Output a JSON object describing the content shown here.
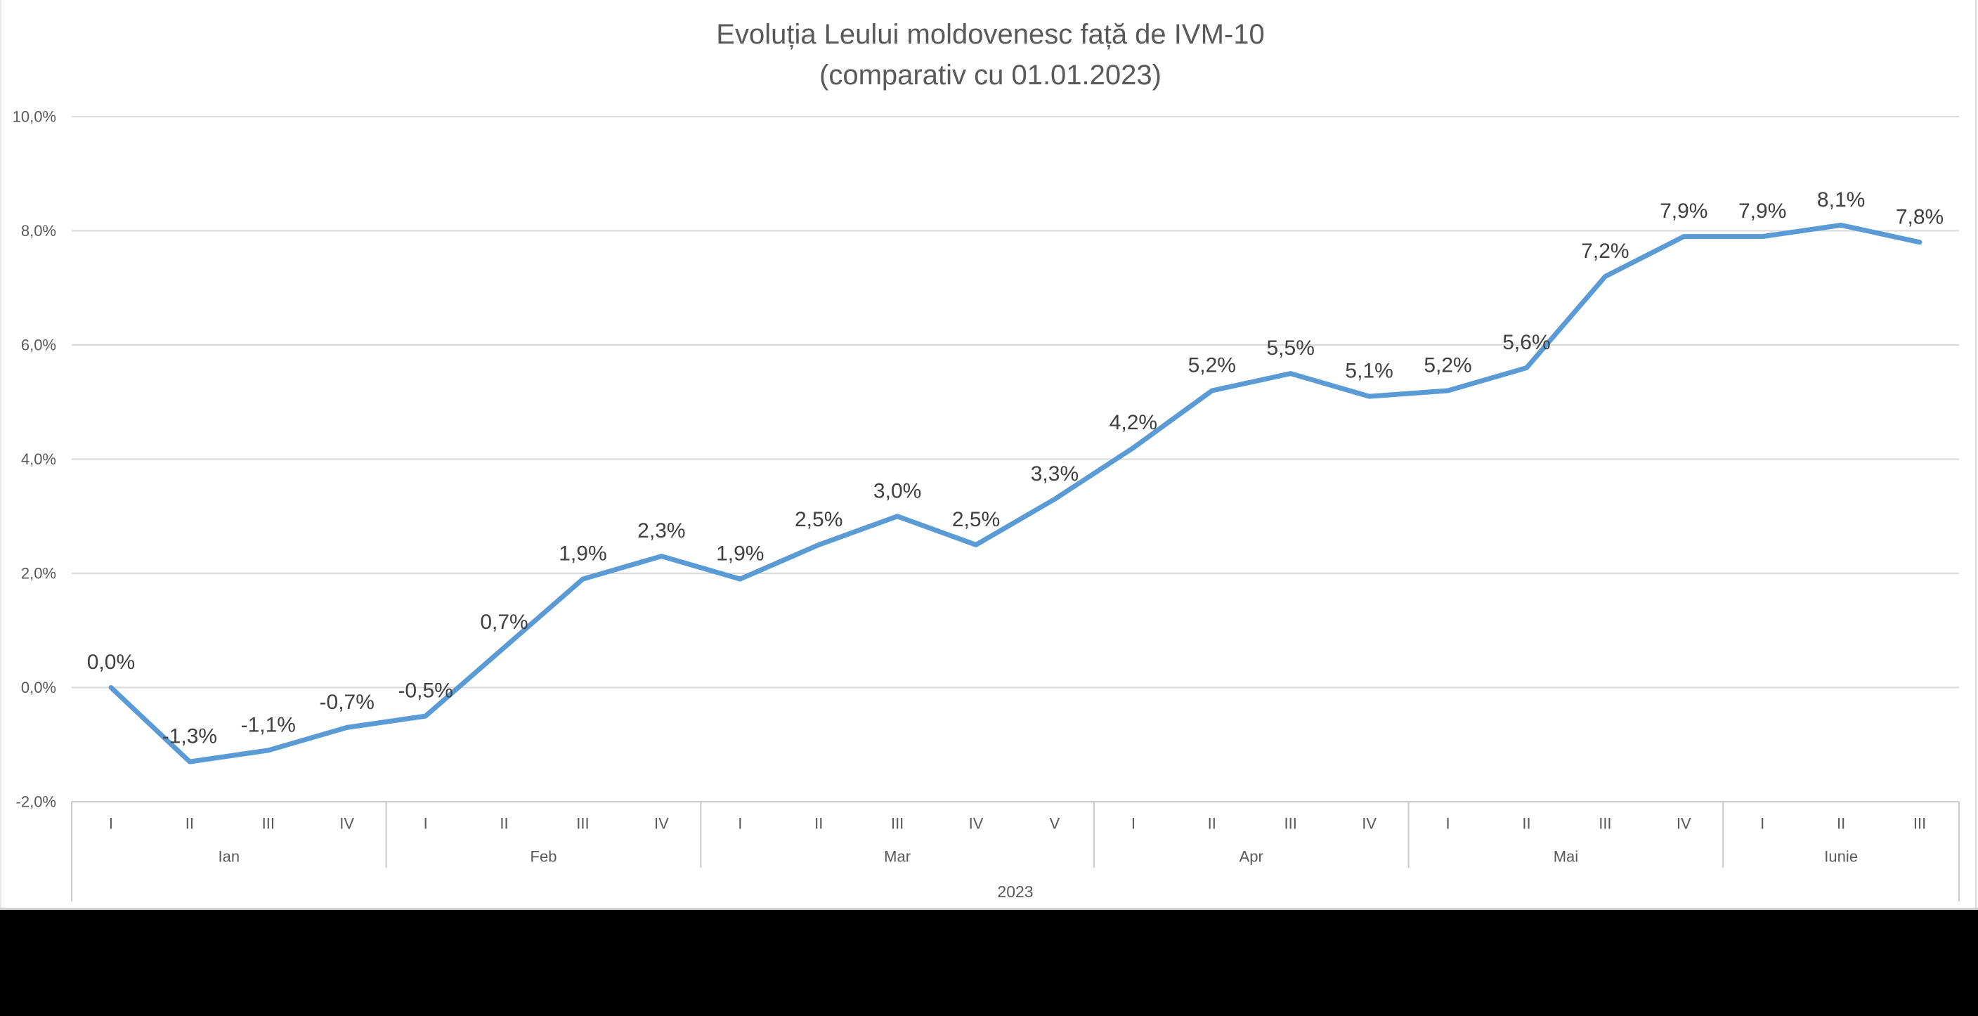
{
  "title": {
    "line1": "Evoluția Leului moldovenesc față de IVM-10",
    "line2": "(comparativ cu 01.01.2023)"
  },
  "chart_data": {
    "type": "line",
    "title": "Evoluția Leului moldovenesc față de IVM-10",
    "subtitle": "(comparativ cu 01.01.2023)",
    "xlabel": "",
    "ylabel": "",
    "ylim": [
      -2,
      10
    ],
    "grid": true,
    "legend": "none",
    "line_color": "#5B9BD5",
    "data_label_color": "#404040",
    "axis_text_color": "#595959",
    "gridline_color": "#D9D9D9",
    "band_border_color": "#C9C9C9",
    "y_ticks": [
      {
        "value": 10,
        "label": "10,0%"
      },
      {
        "value": 8,
        "label": "8,0%"
      },
      {
        "value": 6,
        "label": "6,0%"
      },
      {
        "value": 4,
        "label": "4,0%"
      },
      {
        "value": 2,
        "label": "2,0%"
      },
      {
        "value": 0,
        "label": "0,0%"
      },
      {
        "value": -2,
        "label": "-2,0%"
      }
    ],
    "year_label": "2023",
    "months": [
      {
        "label": "Ian",
        "weeks": [
          "I",
          "II",
          "III",
          "IV"
        ]
      },
      {
        "label": "Feb",
        "weeks": [
          "I",
          "II",
          "III",
          "IV"
        ]
      },
      {
        "label": "Mar",
        "weeks": [
          "I",
          "II",
          "III",
          "IV",
          "V"
        ]
      },
      {
        "label": "Apr",
        "weeks": [
          "I",
          "II",
          "III",
          "IV"
        ]
      },
      {
        "label": "Mai",
        "weeks": [
          "I",
          "II",
          "III",
          "IV"
        ]
      },
      {
        "label": "Iunie",
        "weeks": [
          "I",
          "II",
          "III"
        ]
      }
    ],
    "values": [
      0.0,
      -1.3,
      -1.1,
      -0.7,
      -0.5,
      0.7,
      1.9,
      2.3,
      1.9,
      2.5,
      3.0,
      2.5,
      3.3,
      4.2,
      5.2,
      5.5,
      5.1,
      5.2,
      5.6,
      7.2,
      7.9,
      7.9,
      8.1,
      7.8
    ],
    "point_labels": [
      "0,0%",
      "-1,3%",
      "-1,1%",
      "-0,7%",
      "-0,5%",
      "0,7%",
      "1,9%",
      "2,3%",
      "1,9%",
      "2,5%",
      "3,0%",
      "2,5%",
      "3,3%",
      "4,2%",
      "5,2%",
      "5,5%",
      "5,1%",
      "5,2%",
      "5,6%",
      "7,2%",
      "7,9%",
      "7,9%",
      "8,1%",
      "7,8%"
    ]
  }
}
